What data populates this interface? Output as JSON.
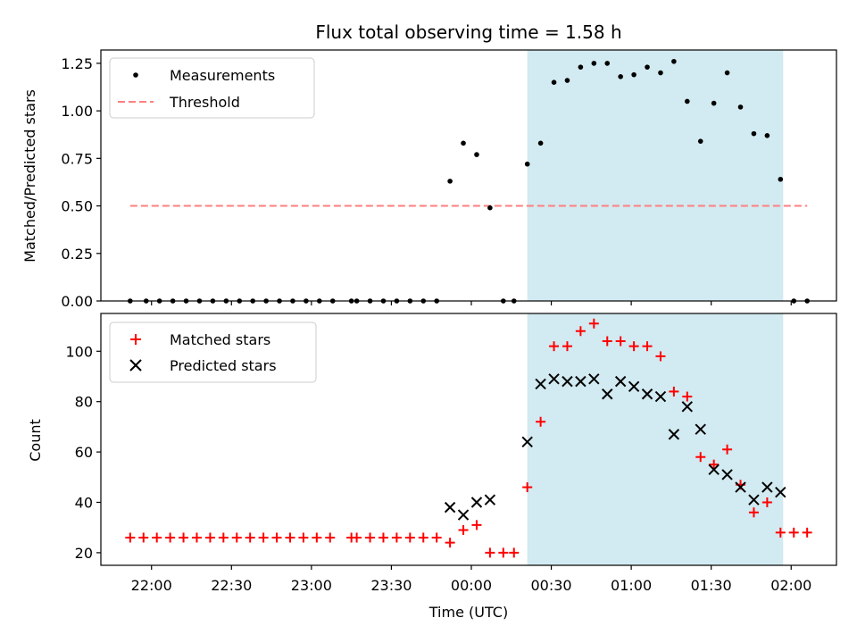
{
  "chart_data": [
    {
      "type": "scatter",
      "title": "Flux total observing time = 1.58 h",
      "xlabel": "",
      "ylabel": "Matched/Predicted stars",
      "ylim": [
        0,
        1.32
      ],
      "yticks": [
        "0.00",
        "0.25",
        "0.50",
        "0.75",
        "1.00",
        "1.25"
      ],
      "grid": false,
      "legend_position": "upper left",
      "shaded_interval": [
        "00:21",
        "01:57"
      ],
      "shade_color": "#add8e6",
      "series": [
        {
          "name": "Measurements",
          "marker": "dot",
          "color": "#000000",
          "points": [
            [
              "21:52",
              0.0
            ],
            [
              "21:58",
              0.0
            ],
            [
              "22:03",
              0.0
            ],
            [
              "22:08",
              0.0
            ],
            [
              "22:13",
              0.0
            ],
            [
              "22:18",
              0.0
            ],
            [
              "22:23",
              0.0
            ],
            [
              "22:28",
              0.0
            ],
            [
              "22:33",
              0.0
            ],
            [
              "22:38",
              0.0
            ],
            [
              "22:43",
              0.0
            ],
            [
              "22:48",
              0.0
            ],
            [
              "22:53",
              0.0
            ],
            [
              "22:58",
              0.0
            ],
            [
              "23:03",
              0.0
            ],
            [
              "23:08",
              0.0
            ],
            [
              "23:15",
              0.0
            ],
            [
              "23:17",
              0.0
            ],
            [
              "23:22",
              0.0
            ],
            [
              "23:27",
              0.0
            ],
            [
              "23:32",
              0.0
            ],
            [
              "23:37",
              0.0
            ],
            [
              "23:42",
              0.0
            ],
            [
              "23:47",
              0.0
            ],
            [
              "23:52",
              0.63
            ],
            [
              "23:57",
              0.83
            ],
            [
              "00:02",
              0.77
            ],
            [
              "00:07",
              0.49
            ],
            [
              "00:12",
              0.0
            ],
            [
              "00:16",
              0.0
            ],
            [
              "00:21",
              0.72
            ],
            [
              "00:26",
              0.83
            ],
            [
              "00:31",
              1.15
            ],
            [
              "00:36",
              1.16
            ],
            [
              "00:41",
              1.23
            ],
            [
              "00:46",
              1.25
            ],
            [
              "00:51",
              1.25
            ],
            [
              "00:56",
              1.18
            ],
            [
              "01:01",
              1.19
            ],
            [
              "01:06",
              1.23
            ],
            [
              "01:11",
              1.2
            ],
            [
              "01:16",
              1.26
            ],
            [
              "01:21",
              1.05
            ],
            [
              "01:26",
              0.84
            ],
            [
              "01:31",
              1.04
            ],
            [
              "01:36",
              1.2
            ],
            [
              "01:41",
              1.02
            ],
            [
              "01:46",
              0.88
            ],
            [
              "01:51",
              0.87
            ],
            [
              "01:56",
              0.64
            ],
            [
              "02:01",
              0.0
            ],
            [
              "02:06",
              0.0
            ]
          ]
        },
        {
          "name": "Threshold",
          "marker": "dashed-line",
          "color": "#ff7f7f",
          "points": [
            [
              "21:52",
              0.5
            ],
            [
              "02:06",
              0.5
            ]
          ]
        }
      ]
    },
    {
      "type": "scatter",
      "title": "",
      "xlabel": "Time (UTC)",
      "ylabel": "Count",
      "ylim": [
        15,
        115
      ],
      "yticks": [
        "20",
        "40",
        "60",
        "80",
        "100"
      ],
      "xlim": [
        "21:41",
        "02:17"
      ],
      "xticks": [
        "22:00",
        "22:30",
        "23:00",
        "23:30",
        "00:00",
        "00:30",
        "01:00",
        "01:30",
        "02:00"
      ],
      "grid": false,
      "legend_position": "upper left",
      "shaded_interval": [
        "00:21",
        "01:57"
      ],
      "shade_color": "#add8e6",
      "series": [
        {
          "name": "Matched stars",
          "marker": "plus",
          "color": "#ff0000",
          "points": [
            [
              "21:52",
              26
            ],
            [
              "21:57",
              26
            ],
            [
              "22:02",
              26
            ],
            [
              "22:07",
              26
            ],
            [
              "22:12",
              26
            ],
            [
              "22:17",
              26
            ],
            [
              "22:22",
              26
            ],
            [
              "22:27",
              26
            ],
            [
              "22:32",
              26
            ],
            [
              "22:37",
              26
            ],
            [
              "22:42",
              26
            ],
            [
              "22:47",
              26
            ],
            [
              "22:52",
              26
            ],
            [
              "22:57",
              26
            ],
            [
              "23:02",
              26
            ],
            [
              "23:07",
              26
            ],
            [
              "23:15",
              26
            ],
            [
              "23:17",
              26
            ],
            [
              "23:22",
              26
            ],
            [
              "23:27",
              26
            ],
            [
              "23:32",
              26
            ],
            [
              "23:37",
              26
            ],
            [
              "23:42",
              26
            ],
            [
              "23:47",
              26
            ],
            [
              "23:52",
              24
            ],
            [
              "23:57",
              29
            ],
            [
              "00:02",
              31
            ],
            [
              "00:07",
              20
            ],
            [
              "00:12",
              20
            ],
            [
              "00:16",
              20
            ],
            [
              "00:21",
              46
            ],
            [
              "00:26",
              72
            ],
            [
              "00:31",
              102
            ],
            [
              "00:36",
              102
            ],
            [
              "00:41",
              108
            ],
            [
              "00:46",
              111
            ],
            [
              "00:51",
              104
            ],
            [
              "00:56",
              104
            ],
            [
              "01:01",
              102
            ],
            [
              "01:06",
              102
            ],
            [
              "01:11",
              98
            ],
            [
              "01:16",
              84
            ],
            [
              "01:21",
              82
            ],
            [
              "01:26",
              58
            ],
            [
              "01:31",
              55
            ],
            [
              "01:36",
              61
            ],
            [
              "01:41",
              47
            ],
            [
              "01:46",
              36
            ],
            [
              "01:51",
              40
            ],
            [
              "01:56",
              28
            ],
            [
              "02:01",
              28
            ],
            [
              "02:06",
              28
            ]
          ]
        },
        {
          "name": "Predicted stars",
          "marker": "x",
          "color": "#000000",
          "points": [
            [
              "23:52",
              38
            ],
            [
              "23:57",
              35
            ],
            [
              "00:02",
              40
            ],
            [
              "00:07",
              41
            ],
            [
              "00:21",
              64
            ],
            [
              "00:26",
              87
            ],
            [
              "00:31",
              89
            ],
            [
              "00:36",
              88
            ],
            [
              "00:41",
              88
            ],
            [
              "00:46",
              89
            ],
            [
              "00:51",
              83
            ],
            [
              "00:56",
              88
            ],
            [
              "01:01",
              86
            ],
            [
              "01:06",
              83
            ],
            [
              "01:11",
              82
            ],
            [
              "01:16",
              67
            ],
            [
              "01:21",
              78
            ],
            [
              "01:26",
              69
            ],
            [
              "01:31",
              53
            ],
            [
              "01:36",
              51
            ],
            [
              "01:41",
              46
            ],
            [
              "01:46",
              41
            ],
            [
              "01:51",
              46
            ],
            [
              "01:56",
              44
            ]
          ]
        }
      ]
    }
  ]
}
